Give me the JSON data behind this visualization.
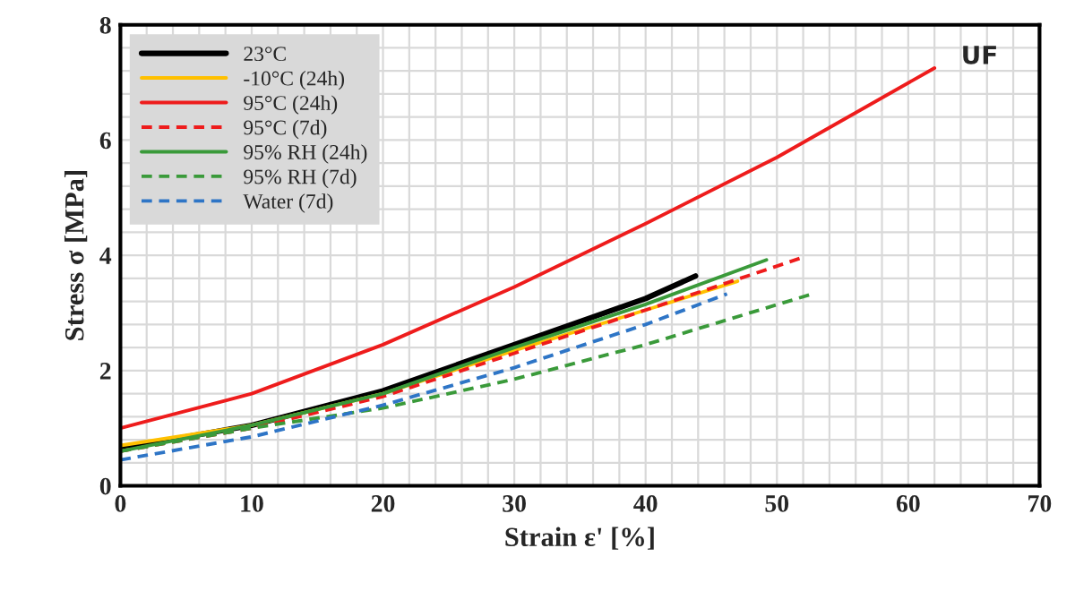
{
  "chart_data": {
    "type": "line",
    "xlabel": "Strain ε' [%]",
    "ylabel": "Stress σ [MPa]",
    "xlim": [
      0,
      70
    ],
    "ylim": [
      0,
      8
    ],
    "xticks": [
      0,
      10,
      20,
      30,
      40,
      50,
      60,
      70
    ],
    "yticks": [
      0,
      2,
      4,
      6,
      8
    ],
    "grid": true,
    "legend": "top left",
    "annotations": [
      "UF"
    ],
    "series": [
      {
        "name": "23°C",
        "color": "#000000",
        "line_style": "solid",
        "x": [
          0,
          10,
          20,
          30,
          40,
          43.8
        ],
        "values": [
          0.65,
          1.05,
          1.65,
          2.45,
          3.25,
          3.64
        ]
      },
      {
        "name": "-10°C (24h)",
        "color": "#ffc000",
        "line_style": "solid",
        "x": [
          0,
          10,
          20,
          30,
          40,
          47
        ],
        "values": [
          0.7,
          1.05,
          1.6,
          2.35,
          3.05,
          3.55
        ]
      },
      {
        "name": "95°C (24h)",
        "color": "#ee1c1c",
        "line_style": "solid",
        "x": [
          0,
          10,
          20,
          30,
          40,
          50,
          62
        ],
        "values": [
          1.0,
          1.6,
          2.45,
          3.45,
          4.55,
          5.7,
          7.25
        ]
      },
      {
        "name": "95°C (7d)",
        "color": "#ee1c1c",
        "line_style": "dashed",
        "x": [
          0,
          10,
          20,
          30,
          40,
          51.8
        ],
        "values": [
          0.6,
          1.0,
          1.55,
          2.3,
          3.05,
          3.95
        ]
      },
      {
        "name": "95% RH (24h)",
        "color": "#3a9a3a",
        "line_style": "solid",
        "x": [
          0,
          10,
          20,
          30,
          40,
          49.2
        ],
        "values": [
          0.6,
          1.05,
          1.6,
          2.4,
          3.15,
          3.92
        ]
      },
      {
        "name": "95% RH (7d)",
        "color": "#3a9a3a",
        "line_style": "dashed",
        "x": [
          0,
          10,
          20,
          30,
          40,
          52.7
        ],
        "values": [
          0.6,
          1.0,
          1.35,
          1.85,
          2.45,
          3.33
        ]
      },
      {
        "name": "Water (7d)",
        "color": "#2e75c6",
        "line_style": "dashed",
        "x": [
          0,
          10,
          20,
          30,
          40,
          46.2
        ],
        "values": [
          0.45,
          0.85,
          1.4,
          2.05,
          2.8,
          3.33
        ]
      }
    ]
  }
}
